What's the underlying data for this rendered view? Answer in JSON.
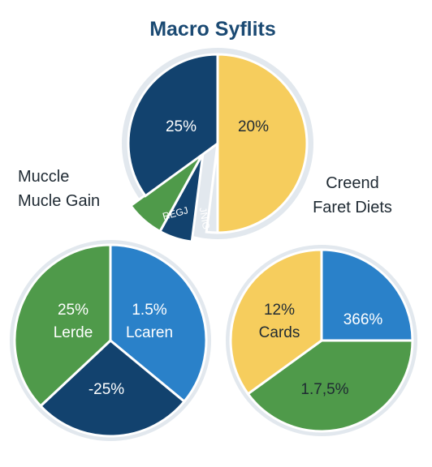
{
  "title": "Macro Syflits",
  "colors": {
    "title": "#1b4a73",
    "label_dark": "#1f2a33",
    "navy": "#12426e",
    "green": "#4f9a4a",
    "yellow": "#f6cd5d",
    "blue": "#2a81c9",
    "ring": "#e2e8ee"
  },
  "chart_data": [
    {
      "type": "pie",
      "title": "Macro Syflits",
      "slices": [
        {
          "label": "20%",
          "value": 50,
          "color": "#f6cd5d"
        },
        {
          "label": "",
          "value": 2,
          "color": "#e2e8ee"
        },
        {
          "label": "JNIG",
          "value": 6,
          "color": "#12426e"
        },
        {
          "label": "REGJ",
          "value": 7,
          "color": "#4f9a4a"
        },
        {
          "label": "25%",
          "value": 35,
          "color": "#12426e"
        }
      ]
    },
    {
      "type": "pie",
      "title": "Muccle\nMucle Gain",
      "slices": [
        {
          "label": "1.5%\nLcaren",
          "value": 36,
          "color": "#2a81c9"
        },
        {
          "label": "-25%",
          "value": 27,
          "color": "#12426e"
        },
        {
          "label": "25%\nLerde",
          "value": 37,
          "color": "#4f9a4a"
        }
      ]
    },
    {
      "type": "pie",
      "title": "Creend\nFaret Diets",
      "slices": [
        {
          "label": "366%",
          "value": 25,
          "color": "#2a81c9"
        },
        {
          "label": "1.7,5%",
          "value": 40,
          "color": "#4f9a4a"
        },
        {
          "label": "12%\nCards",
          "value": 35,
          "color": "#f6cd5d"
        }
      ]
    }
  ]
}
